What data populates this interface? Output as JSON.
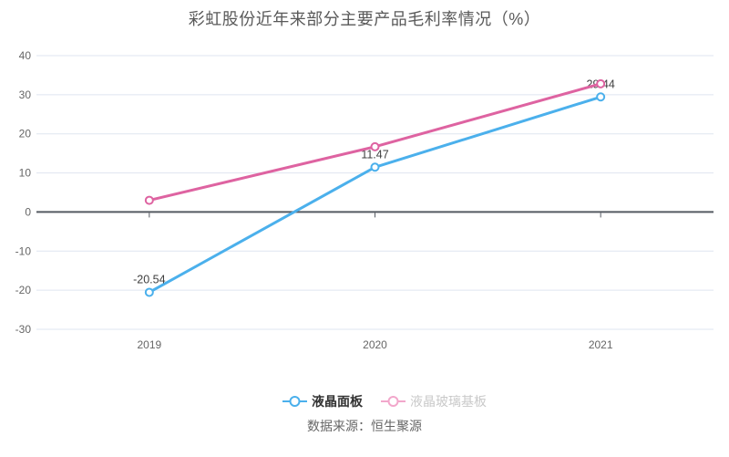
{
  "title": "彩虹股份近年来部分主要产品毛利率情况（%）",
  "source": "数据来源：恒生聚源",
  "colors": {
    "grid_line": "#dfe5f0",
    "axis_line": "#555a62",
    "axis_tick": "#555a62",
    "axis_label": "#666666",
    "data_label": "#3f3f3f",
    "title_text": "#595959",
    "background": "#ffffff",
    "series_blue": "#4bb0ec",
    "series_pink": "#de63a1"
  },
  "chart_data": {
    "type": "line",
    "title": "彩虹股份近年来部分主要产品毛利率情况（%）",
    "xlabel": "",
    "ylabel": "",
    "categories": [
      "2019",
      "2020",
      "2021"
    ],
    "series": [
      {
        "name": "液晶面板",
        "color": "#4bb0ec",
        "values": [
          -20.54,
          11.47,
          29.44
        ],
        "labels": [
          "-20.54",
          "11.47",
          "29.44"
        ],
        "show_labels": true,
        "marker": "open-circle",
        "legend_marker_color": "#4bb0ec",
        "legend_label_color": "#333333",
        "legend_label_bold": true
      },
      {
        "name": "液晶玻璃基板",
        "color": "#de63a1",
        "values": [
          3.0,
          16.7,
          32.8
        ],
        "labels": [],
        "show_labels": false,
        "marker": "open-circle",
        "legend_marker_color": "#f2a7cb",
        "legend_label_color": "#c9c9c9",
        "legend_label_bold": false
      }
    ],
    "ylim": [
      -30,
      40
    ],
    "y_ticks": [
      40,
      30,
      20,
      10,
      0,
      -10,
      -20,
      -30
    ],
    "grid": true,
    "legend_position": "bottom",
    "source_note": "数据来源：恒生聚源"
  }
}
